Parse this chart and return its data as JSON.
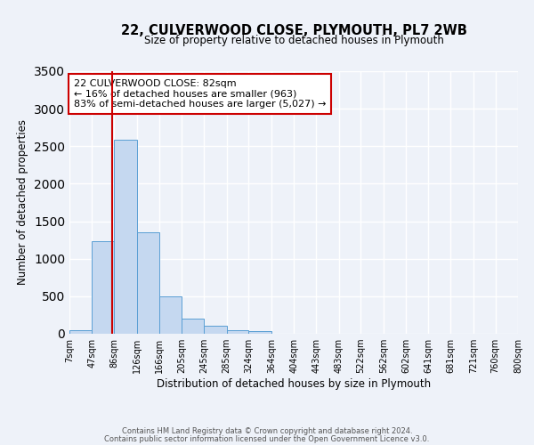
{
  "title": "22, CULVERWOOD CLOSE, PLYMOUTH, PL7 2WB",
  "subtitle": "Size of property relative to detached houses in Plymouth",
  "xlabel": "Distribution of detached houses by size in Plymouth",
  "ylabel": "Number of detached properties",
  "bin_edges": [
    7,
    47,
    86,
    126,
    166,
    205,
    245,
    285,
    324,
    364,
    404,
    443,
    483,
    522,
    562,
    602,
    641,
    681,
    721,
    760,
    800
  ],
  "bin_labels": [
    "7sqm",
    "47sqm",
    "86sqm",
    "126sqm",
    "166sqm",
    "205sqm",
    "245sqm",
    "285sqm",
    "324sqm",
    "364sqm",
    "404sqm",
    "443sqm",
    "483sqm",
    "522sqm",
    "562sqm",
    "602sqm",
    "641sqm",
    "681sqm",
    "721sqm",
    "760sqm",
    "800sqm"
  ],
  "counts": [
    50,
    1230,
    2590,
    1350,
    500,
    200,
    110,
    50,
    40,
    5,
    5,
    0,
    0,
    0,
    0,
    0,
    0,
    0,
    0,
    0
  ],
  "bar_color": "#c5d8f0",
  "bar_edge_color": "#5a9fd4",
  "vline_x": 82,
  "vline_color": "#cc0000",
  "ylim": [
    0,
    3500
  ],
  "yticks": [
    0,
    500,
    1000,
    1500,
    2000,
    2500,
    3000,
    3500
  ],
  "annotation_text": "22 CULVERWOOD CLOSE: 82sqm\n← 16% of detached houses are smaller (963)\n83% of semi-detached houses are larger (5,027) →",
  "annotation_box_color": "#ffffff",
  "annotation_box_edge_color": "#cc0000",
  "footnote1": "Contains HM Land Registry data © Crown copyright and database right 2024.",
  "footnote2": "Contains public sector information licensed under the Open Government Licence v3.0.",
  "background_color": "#eef2f9",
  "grid_color": "#ffffff"
}
